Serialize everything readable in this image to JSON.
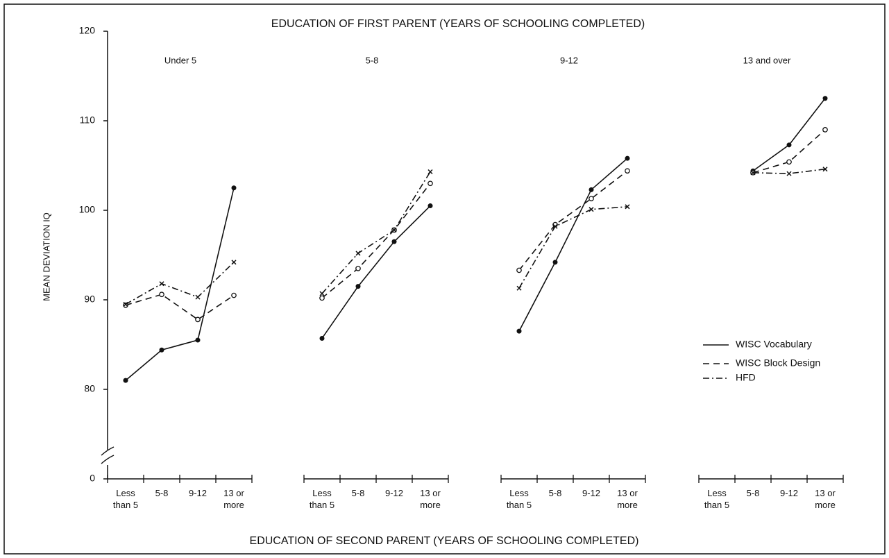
{
  "chart_data": {
    "type": "line",
    "title": "EDUCATION OF FIRST PARENT (YEARS OF SCHOOLING COMPLETED)",
    "xlabel": "EDUCATION OF SECOND PARENT (YEARS OF SCHOOLING COMPLETED)",
    "ylabel": "MEAN DEVIATION IQ",
    "ylim": [
      70,
      120
    ],
    "yticks": [
      {
        "value": 70,
        "label": "0"
      },
      80,
      90,
      100,
      110,
      120
    ],
    "categories": [
      "Less than 5",
      "5-8",
      "9-12",
      "13 or more"
    ],
    "legend": "right",
    "series": [
      {
        "name": "WISC Vocabulary",
        "color": "#111111",
        "dash": "solid",
        "marker": "dot"
      },
      {
        "name": "WISC Block Design",
        "color": "#111111",
        "dash": "dashed",
        "marker": "circle"
      },
      {
        "name": "HFD",
        "color": "#111111",
        "dash": "dashdot",
        "marker": "x"
      }
    ],
    "panels": [
      {
        "title": "Under 5",
        "series": [
          {
            "values": [
              81.0,
              84.4,
              85.5,
              102.5
            ]
          },
          {
            "values": [
              89.4,
              90.6,
              87.8,
              90.5
            ]
          },
          {
            "values": [
              89.5,
              91.8,
              90.3,
              94.2
            ]
          }
        ]
      },
      {
        "title": "5-8",
        "series": [
          {
            "values": [
              85.7,
              91.5,
              96.5,
              100.5
            ]
          },
          {
            "values": [
              90.2,
              93.5,
              97.8,
              103.0
            ]
          },
          {
            "values": [
              90.7,
              95.2,
              97.8,
              104.3
            ]
          }
        ]
      },
      {
        "title": "9-12",
        "series": [
          {
            "values": [
              86.5,
              94.2,
              102.3,
              105.8
            ]
          },
          {
            "values": [
              93.3,
              98.4,
              101.3,
              104.4
            ]
          },
          {
            "values": [
              91.3,
              98.2,
              100.1,
              100.4
            ]
          }
        ]
      },
      {
        "title": "13 and over",
        "series": [
          {
            "values": [
              null,
              104.4,
              107.3,
              112.5
            ]
          },
          {
            "values": [
              null,
              104.2,
              105.4,
              109.0
            ]
          },
          {
            "values": [
              null,
              104.2,
              104.1,
              104.6
            ]
          }
        ]
      }
    ]
  }
}
